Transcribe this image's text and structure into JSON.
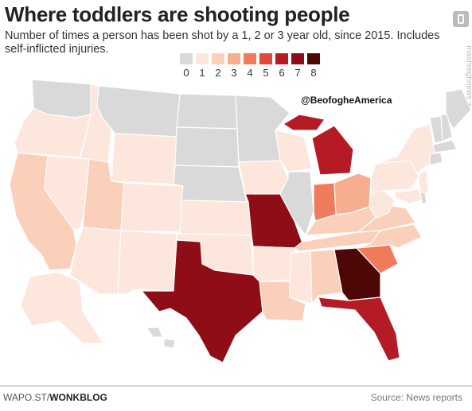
{
  "title": "Where toddlers are shooting people",
  "subtitle": "Number of times a person has been shot by a 1, 2 or 3 year old, since 2015. Includes self-inflicted injuries.",
  "legend": {
    "labels": [
      "0",
      "1",
      "2",
      "3",
      "4",
      "5",
      "6",
      "7",
      "8"
    ],
    "colors": [
      "#d9d9d9",
      "#fde6dc",
      "#fbd0bb",
      "#f7ae90",
      "#f07b5c",
      "#e2493a",
      "#b51b24",
      "#8e0d16",
      "#4d0707"
    ]
  },
  "watermark": "@BeofogheAmerica",
  "side_text": "mashreghnews.ir",
  "footer": {
    "source_prefix": "WAPO.ST/",
    "source_brand": "WONKBLOG",
    "credit": "Source: News reports"
  },
  "map_data": {
    "metric": "Number of times a person has been shot by a 1, 2 or 3 year old, since 2015",
    "states": [
      {
        "id": "WA",
        "value": 0
      },
      {
        "id": "OR",
        "value": 1
      },
      {
        "id": "CA",
        "value": 2
      },
      {
        "id": "ID",
        "value": 1
      },
      {
        "id": "NV",
        "value": 1
      },
      {
        "id": "MT",
        "value": 0
      },
      {
        "id": "WY",
        "value": 1
      },
      {
        "id": "UT",
        "value": 2
      },
      {
        "id": "AZ",
        "value": 1
      },
      {
        "id": "CO",
        "value": 1
      },
      {
        "id": "NM",
        "value": 1
      },
      {
        "id": "ND",
        "value": 0
      },
      {
        "id": "SD",
        "value": 0
      },
      {
        "id": "NE",
        "value": 0
      },
      {
        "id": "KS",
        "value": 1
      },
      {
        "id": "OK",
        "value": 1
      },
      {
        "id": "TX",
        "value": 7
      },
      {
        "id": "MN",
        "value": 0
      },
      {
        "id": "IA",
        "value": 1
      },
      {
        "id": "MO",
        "value": 7
      },
      {
        "id": "AR",
        "value": 1
      },
      {
        "id": "LA",
        "value": 2
      },
      {
        "id": "WI",
        "value": 1
      },
      {
        "id": "IL",
        "value": 0
      },
      {
        "id": "MI",
        "value": 6
      },
      {
        "id": "IN",
        "value": 4
      },
      {
        "id": "OH",
        "value": 3
      },
      {
        "id": "KY",
        "value": 2
      },
      {
        "id": "TN",
        "value": 2
      },
      {
        "id": "MS",
        "value": 1
      },
      {
        "id": "AL",
        "value": 2
      },
      {
        "id": "GA",
        "value": 8
      },
      {
        "id": "FL",
        "value": 6
      },
      {
        "id": "SC",
        "value": 4
      },
      {
        "id": "NC",
        "value": 2
      },
      {
        "id": "VA",
        "value": 2
      },
      {
        "id": "WV",
        "value": 1
      },
      {
        "id": "PA",
        "value": 1
      },
      {
        "id": "NY",
        "value": 1
      },
      {
        "id": "ME",
        "value": 0
      },
      {
        "id": "NH",
        "value": 0
      },
      {
        "id": "VT",
        "value": 0
      },
      {
        "id": "MA",
        "value": 0
      },
      {
        "id": "CT",
        "value": 0
      },
      {
        "id": "NJ",
        "value": 1
      },
      {
        "id": "MD",
        "value": 1
      },
      {
        "id": "DE",
        "value": 0
      },
      {
        "id": "AK",
        "value": 1
      },
      {
        "id": "HI",
        "value": 0
      }
    ]
  }
}
